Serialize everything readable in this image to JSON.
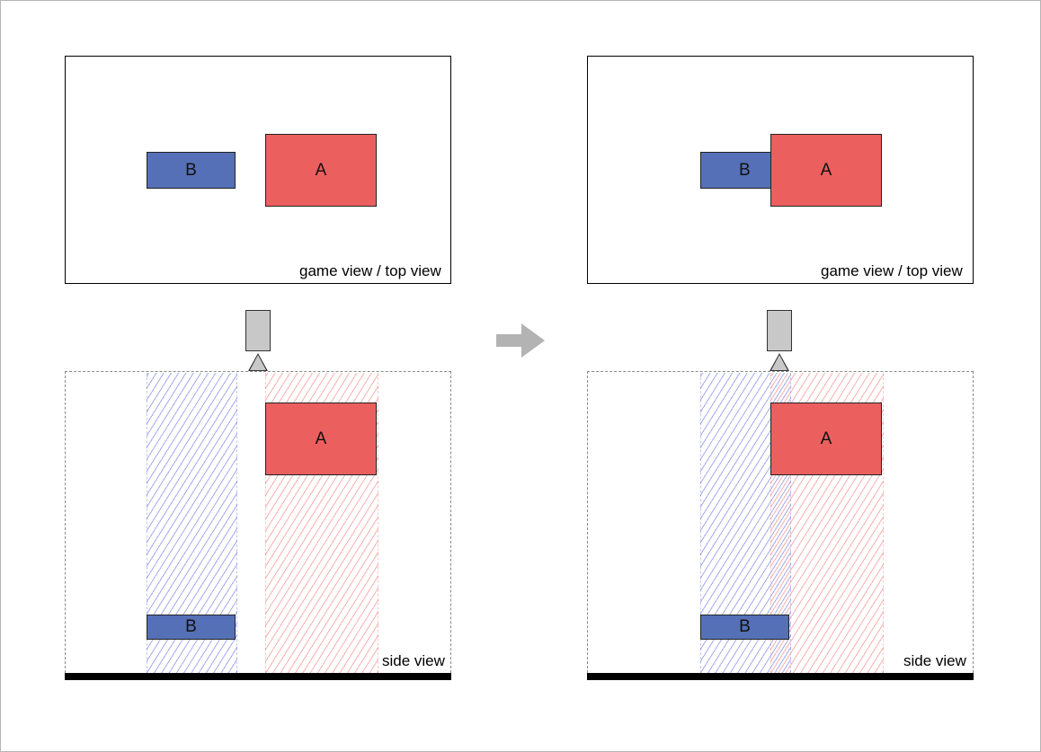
{
  "colors": {
    "box_a": "#ec5f5f",
    "box_b": "#5570b6",
    "camera": "#c8c8c8",
    "arrow": "#b3b3b3"
  },
  "icons": {
    "transition": "arrow-right-icon",
    "camera": "camera-icon"
  },
  "left": {
    "top_view": {
      "caption": "game view / top view",
      "box_a_label": "A",
      "box_b_label": "B"
    },
    "side_view": {
      "caption": "side view",
      "box_a_label": "A",
      "box_b_label": "B"
    }
  },
  "right": {
    "top_view": {
      "caption": "game view / top view",
      "box_a_label": "A",
      "box_b_label": "B"
    },
    "side_view": {
      "caption": "side view",
      "box_a_label": "A",
      "box_b_label": "B"
    }
  }
}
